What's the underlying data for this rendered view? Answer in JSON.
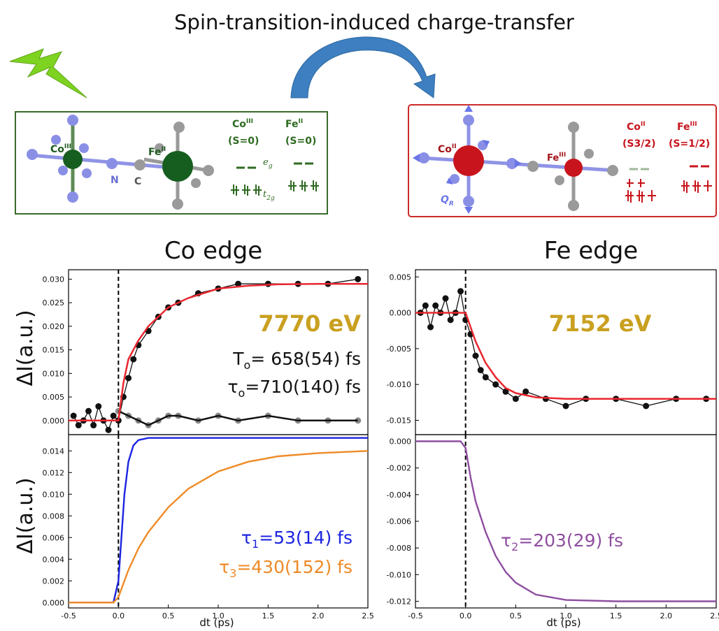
{
  "title": "Spin-transition-induced charge-transfer",
  "colors": {
    "lightning": "#7ed321",
    "arrow": "#3d7fc0",
    "green_box": "#3a6b2a",
    "red_box": "#cc2a2a",
    "green_atom": "#155e1f",
    "red_atom": "#c8141c",
    "n_atom": "#8a8fe6",
    "c_atom": "#9a9a9a",
    "fit_red": "#e8272f",
    "tau1_blue": "#1b24e0",
    "tau3_orange": "#ef8a26",
    "tau2_purple": "#8e4ea0",
    "energy_gold": "#c9a020"
  },
  "left_scheme": {
    "co_label": "Co",
    "co_sup": "III",
    "fe_label": "Fe",
    "fe_sup": "II",
    "n_label": "N",
    "c_label": "C",
    "co_col_title": "Co",
    "co_col_sup": "III",
    "co_col_spin": "(S=0)",
    "fe_col_title": "Fe",
    "fe_col_sup": "II",
    "fe_col_spin": "(S=0)",
    "eg_label": "e",
    "eg_sub": "g",
    "t2g_label": "t",
    "t2g_sub": "2g"
  },
  "right_scheme": {
    "co_label": "Co",
    "co_sup": "II",
    "fe_label": "Fe",
    "fe_sup": "III",
    "qr_label": "Q",
    "qr_sub": "R",
    "co_col_title": "Co",
    "co_col_sup": "II",
    "co_col_spin": "(S3/2)",
    "fe_col_title": "Fe",
    "fe_col_sup": "III",
    "fe_col_spin": "(S=1/2)"
  },
  "chart_data": [
    {
      "id": "co-top",
      "type": "scatter",
      "title": "Co edge",
      "xlabel": "",
      "ylabel": "ΔI(a.u.)",
      "xlim": [
        -0.5,
        2.5
      ],
      "ylim": [
        -0.003,
        0.032
      ],
      "yticks": [
        "0.000",
        "0.005",
        "0.010",
        "0.015",
        "0.020",
        "0.025",
        "0.030"
      ],
      "yticks_values": [
        0,
        0.005,
        0.01,
        0.015,
        0.02,
        0.025,
        0.03
      ],
      "annotations": [
        "7770 eV",
        "T",
        "o",
        "= 658(54) fs",
        "τ",
        "o",
        "=710(140) fs"
      ],
      "series": [
        {
          "kind": "data",
          "x": [
            -0.45,
            -0.4,
            -0.35,
            -0.3,
            -0.25,
            -0.2,
            -0.15,
            -0.1,
            -0.05,
            0.0,
            0.05,
            0.1,
            0.15,
            0.2,
            0.3,
            0.4,
            0.5,
            0.6,
            0.8,
            1.0,
            1.2,
            1.5,
            1.8,
            2.1,
            2.4
          ],
          "y": [
            0.001,
            -0.001,
            0.0,
            0.002,
            -0.001,
            0.003,
            0.0,
            -0.002,
            0.001,
            0.0,
            0.005,
            0.009,
            0.013,
            0.016,
            0.019,
            0.022,
            0.024,
            0.025,
            0.027,
            0.028,
            0.029,
            0.029,
            0.029,
            0.029,
            0.03
          ]
        },
        {
          "kind": "fit",
          "x": [
            -0.5,
            0.0,
            0.05,
            0.1,
            0.2,
            0.3,
            0.4,
            0.5,
            0.7,
            1.0,
            1.3,
            1.6,
            2.0,
            2.5
          ],
          "y": [
            0.0,
            0.0,
            0.008,
            0.013,
            0.017,
            0.02,
            0.022,
            0.024,
            0.026,
            0.028,
            0.0286,
            0.0289,
            0.029,
            0.029
          ]
        },
        {
          "kind": "residual",
          "x": [
            0.0,
            0.1,
            0.2,
            0.3,
            0.4,
            0.5,
            0.6,
            0.8,
            1.0,
            1.2,
            1.5,
            1.8,
            2.1,
            2.4
          ],
          "y": [
            0.002,
            0.001,
            0.0,
            -0.001,
            0.0,
            0.001,
            0.001,
            0.0,
            0.001,
            0.0,
            0.001,
            0.0,
            0.0,
            0.0
          ]
        }
      ]
    },
    {
      "id": "co-bottom",
      "type": "line",
      "xlabel": "dt (ps)",
      "ylabel": "ΔI(a.u.)",
      "xlim": [
        -0.5,
        2.5
      ],
      "ylim": [
        -0.0005,
        0.0155
      ],
      "xticks": [
        "-0.5",
        "0.0",
        "0.5",
        "1.0",
        "1.5",
        "2.0",
        "2.5"
      ],
      "xticks_values": [
        -0.5,
        0.0,
        0.5,
        1.0,
        1.5,
        2.0,
        2.5
      ],
      "yticks": [
        "0.000",
        "0.002",
        "0.004",
        "0.006",
        "0.008",
        "0.010",
        "0.012",
        "0.014"
      ],
      "yticks_values": [
        0,
        0.002,
        0.004,
        0.006,
        0.008,
        0.01,
        0.012,
        0.014
      ],
      "series": [
        {
          "name": "τ1",
          "label": "τ",
          "sub": "1",
          "value_text": "=53(14) fs",
          "x": [
            -0.5,
            -0.05,
            0.0,
            0.03,
            0.06,
            0.1,
            0.15,
            0.2,
            0.3,
            0.5,
            1.0,
            2.5
          ],
          "y": [
            0,
            0,
            0.002,
            0.006,
            0.01,
            0.013,
            0.0145,
            0.015,
            0.0152,
            0.0152,
            0.0152,
            0.0152
          ]
        },
        {
          "name": "τ3",
          "label": "τ",
          "sub": "3",
          "value_text": "=430(152) fs",
          "x": [
            -0.5,
            -0.05,
            0.0,
            0.1,
            0.2,
            0.3,
            0.5,
            0.7,
            1.0,
            1.3,
            1.6,
            2.0,
            2.5
          ],
          "y": [
            0,
            0,
            0.0005,
            0.003,
            0.005,
            0.0065,
            0.0088,
            0.0105,
            0.0121,
            0.013,
            0.0135,
            0.0138,
            0.014
          ]
        }
      ]
    },
    {
      "id": "fe-top",
      "type": "scatter",
      "title": "Fe edge",
      "xlim": [
        -0.5,
        2.5
      ],
      "ylim": [
        -0.017,
        0.006
      ],
      "yticks": [
        "0.005",
        "0.000",
        "-0.005",
        "-0.010",
        "-0.015"
      ],
      "yticks_values": [
        0.005,
        0,
        -0.005,
        -0.01,
        -0.015
      ],
      "annotations": [
        "7152 eV"
      ],
      "series": [
        {
          "kind": "data",
          "x": [
            -0.45,
            -0.4,
            -0.35,
            -0.3,
            -0.25,
            -0.2,
            -0.15,
            -0.1,
            -0.05,
            0.0,
            0.05,
            0.1,
            0.15,
            0.2,
            0.3,
            0.4,
            0.5,
            0.6,
            0.8,
            1.0,
            1.2,
            1.5,
            1.8,
            2.1,
            2.4
          ],
          "y": [
            0.0,
            0.001,
            -0.002,
            0.001,
            0.0,
            0.002,
            -0.001,
            0.0,
            0.003,
            -0.001,
            -0.003,
            -0.006,
            -0.008,
            -0.009,
            -0.01,
            -0.011,
            -0.012,
            -0.011,
            -0.012,
            -0.013,
            -0.012,
            -0.012,
            -0.013,
            -0.012,
            -0.012
          ]
        },
        {
          "kind": "fit",
          "x": [
            -0.5,
            0.0,
            0.05,
            0.1,
            0.2,
            0.3,
            0.4,
            0.5,
            0.7,
            1.0,
            1.3,
            1.6,
            2.0,
            2.5
          ],
          "y": [
            0.0,
            0.0,
            -0.002,
            -0.004,
            -0.007,
            -0.009,
            -0.0105,
            -0.0112,
            -0.0118,
            -0.012,
            -0.012,
            -0.012,
            -0.012,
            -0.012
          ]
        }
      ]
    },
    {
      "id": "fe-bottom",
      "type": "line",
      "xlabel": "dt (ps)",
      "xlim": [
        -0.5,
        2.5
      ],
      "ylim": [
        -0.0125,
        0.0005
      ],
      "xticks": [
        "-0.5",
        "0.0",
        "0.5",
        "1.0",
        "1.5",
        "2.0",
        "2.5"
      ],
      "xticks_values": [
        -0.5,
        0.0,
        0.5,
        1.0,
        1.5,
        2.0,
        2.5
      ],
      "yticks": [
        "0.000",
        "-0.002",
        "-0.004",
        "-0.006",
        "-0.008",
        "-0.010",
        "-0.012"
      ],
      "yticks_values": [
        0,
        -0.002,
        -0.004,
        -0.006,
        -0.008,
        -0.01,
        -0.012
      ],
      "series": [
        {
          "name": "τ2",
          "label": "τ",
          "sub": "2",
          "value_text": "=203(29) fs",
          "x": [
            -0.5,
            -0.05,
            0.0,
            0.05,
            0.1,
            0.2,
            0.3,
            0.4,
            0.5,
            0.7,
            1.0,
            1.5,
            2.5
          ],
          "y": [
            0,
            0,
            -0.0005,
            -0.0027,
            -0.0045,
            -0.0068,
            -0.0086,
            -0.0098,
            -0.0106,
            -0.0115,
            -0.0119,
            -0.012,
            -0.012
          ]
        }
      ]
    }
  ]
}
